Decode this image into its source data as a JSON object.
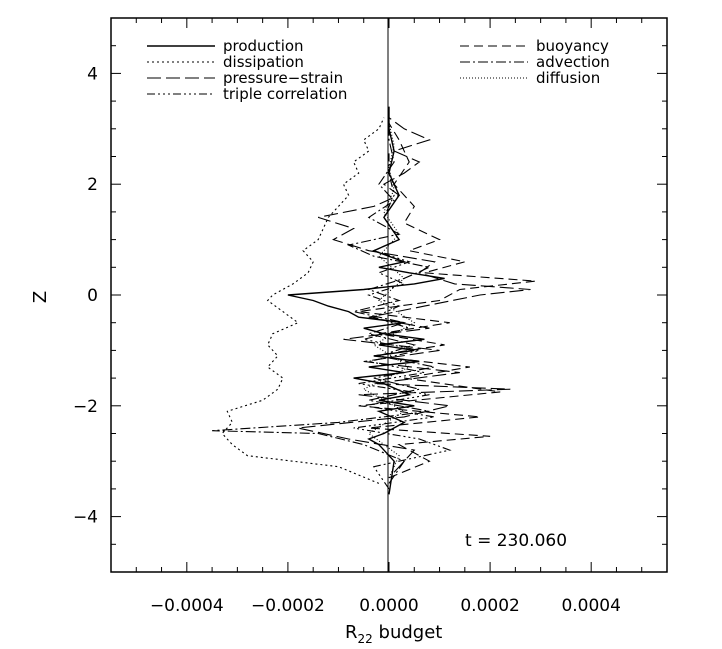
{
  "chart_data": {
    "type": "line",
    "xlabel_main": "R",
    "xlabel_sub": "22",
    "xlabel_rest": " budget",
    "ylabel": "Z",
    "xlim": [
      -0.00055,
      0.00055
    ],
    "ylim": [
      -5,
      5
    ],
    "x_ticks": [
      -0.0004,
      -0.0002,
      0.0,
      0.0002,
      0.0004
    ],
    "x_tick_labels": [
      "−0.0004",
      "−0.0002",
      "0.0000",
      "0.0002",
      "0.0004"
    ],
    "y_ticks": [
      -4,
      -2,
      0,
      2,
      4
    ],
    "y_tick_labels": [
      "−4",
      "−2",
      "0",
      "2",
      "4"
    ],
    "annotation": "t  =  230.060",
    "legend": [
      "production",
      "dissipation",
      "pressure−strain",
      "triple correlation",
      "buoyancy",
      "advection",
      "diffusion"
    ],
    "series": [
      {
        "name": "production",
        "dash": "",
        "z": [
          -3.6,
          -3.0,
          -2.7,
          -2.6,
          -2.5,
          -2.3,
          -2.1,
          -2.0,
          -1.9,
          -1.8,
          -1.6,
          -1.5,
          -1.4,
          -1.3,
          -1.2,
          -1.1,
          -1.0,
          -0.9,
          -0.8,
          -0.7,
          -0.6,
          -0.5,
          -0.4,
          -0.3,
          -0.2,
          -0.1,
          0.0,
          0.1,
          0.2,
          0.3,
          0.4,
          0.5,
          0.6,
          0.8,
          1.0,
          1.4,
          1.8,
          2.2,
          2.6,
          3.0,
          3.4
        ],
        "x": [
          0.0,
          1e-05,
          -2e-05,
          -4e-05,
          -1e-05,
          3e-05,
          -2e-05,
          5e-05,
          -2e-05,
          4e-05,
          -1e-05,
          -7e-05,
          3e-05,
          -4e-05,
          6e-05,
          -3e-05,
          5e-05,
          -2e-05,
          7e-05,
          -1e-05,
          -5e-05,
          3e-05,
          -6e-05,
          -8e-05,
          -0.00012,
          -0.00015,
          -0.0002,
          -5e-05,
          5e-05,
          0.00011,
          4e-05,
          -2e-05,
          3e-05,
          -3e-05,
          2e-05,
          -1e-05,
          2e-05,
          0.0,
          1e-05,
          0.0,
          0.0
        ]
      },
      {
        "name": "dissipation",
        "dash": "2 3",
        "z": [
          -3.4,
          -3.1,
          -2.9,
          -2.7,
          -2.5,
          -2.3,
          -2.1,
          -1.9,
          -1.7,
          -1.5,
          -1.3,
          -1.1,
          -0.9,
          -0.7,
          -0.5,
          -0.3,
          -0.1,
          0.0,
          0.2,
          0.4,
          0.6,
          0.8,
          1.0,
          1.2,
          1.4,
          1.6,
          1.8,
          2.0,
          2.2,
          2.4,
          2.6,
          2.8,
          3.0,
          3.2
        ],
        "x": [
          -2e-05,
          -0.0001,
          -0.00028,
          -0.00031,
          -0.00033,
          -0.00031,
          -0.00032,
          -0.00025,
          -0.00022,
          -0.00021,
          -0.00024,
          -0.00022,
          -0.00024,
          -0.00023,
          -0.00018,
          -0.00021,
          -0.00024,
          -0.00023,
          -0.00019,
          -0.00016,
          -0.00015,
          -0.00017,
          -0.00014,
          -0.00013,
          -0.00012,
          -0.0001,
          -8e-05,
          -9e-05,
          -6e-05,
          -7e-05,
          -4e-05,
          -5e-05,
          -2e-05,
          -1e-05
        ]
      },
      {
        "name": "pressure−strain",
        "dash": "14 5",
        "z": [
          -3.2,
          -2.8,
          -2.6,
          -2.4,
          -2.2,
          -2.0,
          -1.8,
          -1.7,
          -1.6,
          -1.4,
          -1.2,
          -1.0,
          -0.8,
          -0.6,
          -0.4,
          -0.2,
          0.0,
          0.1,
          0.2,
          0.4,
          0.6,
          0.8,
          1.0,
          1.2,
          1.4,
          1.6,
          1.8,
          2.0,
          2.2,
          2.4,
          2.6,
          2.8,
          3.0,
          3.2
        ],
        "x": [
          1e-05,
          5e-05,
          -8e-05,
          -0.00018,
          3e-05,
          0.00012,
          -6e-05,
          0.00024,
          -3e-05,
          0.00014,
          -5e-05,
          0.0001,
          -9e-05,
          8e-05,
          -4e-05,
          7e-05,
          0.00018,
          0.00028,
          0.00013,
          6e-05,
          9e-05,
          -4e-05,
          -0.00011,
          -7e-05,
          -0.00014,
          -3e-05,
          2e-05,
          -1e-05,
          3e-05,
          6e-05,
          1e-05,
          8e-05,
          3e-05,
          0.0
        ]
      },
      {
        "name": "triple correlation",
        "dash": "8 3 2 3 2 3 2 3",
        "z": [
          -3.5,
          -3.1,
          -2.8,
          -2.6,
          -2.4,
          -2.2,
          -2.0,
          -1.8,
          -1.6,
          -1.4,
          -1.2,
          -1.0,
          -0.8,
          -0.6,
          -0.4,
          -0.2,
          0.0,
          0.2,
          0.4,
          0.6,
          0.8,
          1.0,
          1.4,
          1.8,
          2.2,
          2.6
        ],
        "x": [
          0.0,
          -3e-05,
          0.00012,
          6e-05,
          -7e-05,
          9e-05,
          -5e-05,
          8e-05,
          -6e-05,
          7e-05,
          -4e-05,
          6e-05,
          -5e-05,
          4e-05,
          -3e-05,
          2e-05,
          -4e-05,
          3e-05,
          -2e-05,
          4e-05,
          -3e-05,
          2e-05,
          -1e-05,
          1e-05,
          0.0,
          0.0
        ]
      },
      {
        "name": "buoyancy",
        "dash": "9 5",
        "z": [
          -3.3,
          -3.0,
          -2.7,
          -2.55,
          -2.4,
          -2.2,
          -2.0,
          -1.75,
          -1.5,
          -1.3,
          -1.1,
          -0.9,
          -0.7,
          -0.5,
          -0.3,
          -0.1,
          0.1,
          0.25,
          0.4,
          0.6,
          0.8,
          1.0,
          1.3,
          1.6,
          2.0,
          2.4,
          2.8,
          3.1
        ],
        "x": [
          0.0,
          8e-05,
          2e-05,
          0.0002,
          -4e-05,
          0.00018,
          -6e-05,
          0.00022,
          3e-05,
          0.00016,
          -3e-05,
          0.00011,
          -2e-05,
          0.00012,
          -6e-05,
          0.0001,
          0.00014,
          0.00029,
          7e-05,
          0.00015,
          4e-05,
          0.0001,
          3e-05,
          5e-05,
          1e-05,
          4e-05,
          2e-05,
          0.0
        ]
      },
      {
        "name": "advection",
        "dash": "10 3 2 3",
        "z": [
          -3.4,
          -3.0,
          -2.7,
          -2.5,
          -2.45,
          -2.3,
          -2.1,
          -1.9,
          -1.7,
          -1.5,
          -1.3,
          -1.1,
          -0.9,
          -0.7,
          -0.5,
          -0.3,
          -0.1,
          0.1,
          0.3,
          0.5,
          0.7,
          0.9,
          1.1,
          1.4,
          1.7,
          2.0,
          2.4,
          2.8,
          3.1
        ],
        "x": [
          0.0,
          3e-05,
          -5e-05,
          -0.00014,
          -0.00035,
          -0.0001,
          8e-05,
          -4e-05,
          6e-05,
          -3e-05,
          9e-05,
          -2e-05,
          5e-05,
          -4e-05,
          3e-05,
          -7e-05,
          2e-05,
          -4e-05,
          3e-05,
          8e-05,
          -3e-05,
          -8e-05,
          2e-05,
          -4e-05,
          1e-05,
          -2e-05,
          1e-05,
          0.0,
          0.0
        ]
      },
      {
        "name": "diffusion",
        "dash": "1 2",
        "z": [
          -3.3,
          -2.9,
          -2.5,
          -2.1,
          -1.7,
          -1.3,
          -0.9,
          -0.5,
          -0.1,
          0.3,
          0.7,
          1.1,
          1.5,
          1.9,
          2.3,
          2.7,
          3.1
        ],
        "x": [
          0.0,
          2e-05,
          -4e-05,
          3e-05,
          -5e-05,
          4e-05,
          -3e-05,
          5e-05,
          -2e-05,
          3e-05,
          -2e-05,
          2e-05,
          -1e-05,
          1e-05,
          0.0,
          1e-05,
          0.0
        ]
      }
    ]
  }
}
